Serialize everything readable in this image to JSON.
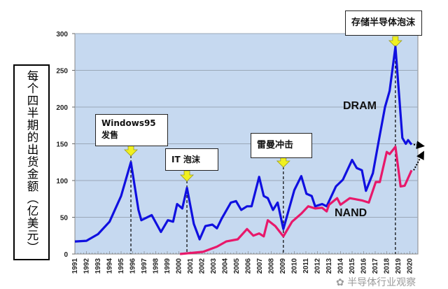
{
  "chart_data": {
    "type": "line",
    "title": "",
    "ylabel": "每个四半期的出货金额（亿美元）",
    "xlabel": "",
    "ylim": [
      0,
      300
    ],
    "yticks": [
      0,
      50,
      100,
      150,
      200,
      250,
      300
    ],
    "xlim": [
      1991,
      2020.5
    ],
    "xtick_labels": [
      "1991",
      "1992",
      "1993",
      "1994",
      "1995",
      "1996",
      "1997",
      "1998",
      "1999",
      "2000",
      "2001",
      "2002",
      "2003",
      "2004",
      "2005",
      "2006",
      "2007",
      "2008",
      "2009",
      "2010",
      "2011",
      "2012",
      "2013",
      "2014",
      "2015",
      "2016",
      "2017",
      "2018",
      "2019",
      "2020"
    ],
    "grid": "horizontal",
    "background_color": "#c6d9f0",
    "series": [
      {
        "name": "DRAM",
        "color": "#1010e0",
        "points": [
          [
            1991.0,
            17
          ],
          [
            1992.0,
            18
          ],
          [
            1993.0,
            27
          ],
          [
            1994.0,
            44
          ],
          [
            1995.0,
            79
          ],
          [
            1995.85,
            125
          ],
          [
            1996.5,
            60
          ],
          [
            1996.75,
            46
          ],
          [
            1997.65,
            53
          ],
          [
            1998.45,
            30
          ],
          [
            1999.05,
            46
          ],
          [
            1999.5,
            44
          ],
          [
            1999.85,
            68
          ],
          [
            2000.3,
            62
          ],
          [
            2000.7,
            90
          ],
          [
            2001.3,
            41
          ],
          [
            2001.8,
            20
          ],
          [
            2002.3,
            38
          ],
          [
            2002.9,
            40
          ],
          [
            2003.3,
            35
          ],
          [
            2003.7,
            48
          ],
          [
            2004.5,
            70
          ],
          [
            2004.95,
            72
          ],
          [
            2005.4,
            60
          ],
          [
            2005.9,
            65
          ],
          [
            2006.3,
            65
          ],
          [
            2006.95,
            105
          ],
          [
            2007.35,
            79
          ],
          [
            2007.7,
            76
          ],
          [
            2008.15,
            60
          ],
          [
            2008.55,
            70
          ],
          [
            2009.05,
            34
          ],
          [
            2010.0,
            87
          ],
          [
            2010.6,
            106
          ],
          [
            2011.05,
            82
          ],
          [
            2011.5,
            79
          ],
          [
            2011.8,
            65
          ],
          [
            2012.4,
            68
          ],
          [
            2012.8,
            65
          ],
          [
            2013.6,
            92
          ],
          [
            2014.2,
            101
          ],
          [
            2015.0,
            128
          ],
          [
            2015.4,
            117
          ],
          [
            2015.85,
            114
          ],
          [
            2016.2,
            86
          ],
          [
            2016.8,
            110
          ],
          [
            2017.4,
            162
          ],
          [
            2017.85,
            200
          ],
          [
            2018.25,
            222
          ],
          [
            2018.75,
            282
          ],
          [
            2019.35,
            158
          ],
          [
            2019.65,
            150
          ],
          [
            2019.85,
            155
          ],
          [
            2020.15,
            149
          ]
        ]
      },
      {
        "name": "NAND",
        "color": "#e8186a",
        "points": [
          [
            2000.1,
            0
          ],
          [
            2002.1,
            3
          ],
          [
            2003.3,
            10
          ],
          [
            2004.1,
            17
          ],
          [
            2005.1,
            20
          ],
          [
            2005.9,
            34
          ],
          [
            2006.45,
            25
          ],
          [
            2006.95,
            28
          ],
          [
            2007.35,
            24
          ],
          [
            2007.7,
            46
          ],
          [
            2008.35,
            38
          ],
          [
            2009.05,
            24
          ],
          [
            2009.8,
            44
          ],
          [
            2010.6,
            55
          ],
          [
            2011.2,
            65
          ],
          [
            2011.8,
            62
          ],
          [
            2012.4,
            63
          ],
          [
            2012.8,
            58
          ],
          [
            2013.0,
            67
          ],
          [
            2013.7,
            76
          ],
          [
            2014.0,
            67
          ],
          [
            2014.8,
            76
          ],
          [
            2015.85,
            73
          ],
          [
            2016.45,
            70
          ],
          [
            2017.05,
            98
          ],
          [
            2017.4,
            98
          ],
          [
            2018.0,
            139
          ],
          [
            2018.25,
            136
          ],
          [
            2018.75,
            146
          ],
          [
            2019.2,
            92
          ],
          [
            2019.55,
            93
          ],
          [
            2020.15,
            114
          ]
        ]
      }
    ],
    "annotations": [
      {
        "text_lines": [
          "Windows95",
          "发售"
        ],
        "x": 1995.85
      },
      {
        "text_lines": [
          "IT 泡沫"
        ],
        "x": 2000.7
      },
      {
        "text_lines": [
          "雷曼冲击"
        ],
        "x": 2009.05
      },
      {
        "text_lines": [
          "存储半导体泡沫"
        ],
        "x": 2018.75
      }
    ],
    "series_labels": {
      "dram": "DRAM",
      "nand": "NAND"
    }
  },
  "watermark": "半导体行业观察"
}
